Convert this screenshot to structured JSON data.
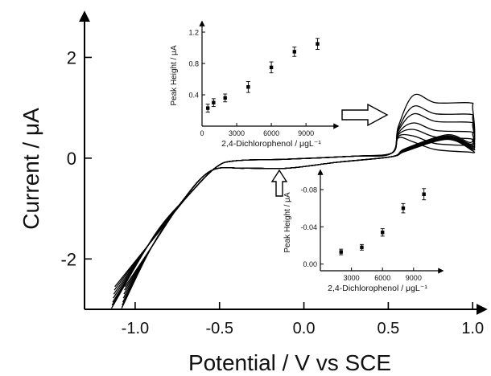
{
  "chart_data": [
    {
      "type": "line",
      "title": "",
      "xlabel": "Potential / V vs SCE",
      "ylabel": "Current / μA",
      "xlim": [
        -1.3,
        1.08
      ],
      "ylim": [
        -3.0,
        2.9
      ],
      "x_ticks": [
        -1.0,
        -0.5,
        0.0,
        0.5,
        1.0
      ],
      "x_tick_labels": [
        "-1.0",
        "-0.5",
        "0.0",
        "0.5",
        "1.0"
      ],
      "y_ticks": [
        -2,
        0,
        2
      ],
      "y_tick_labels": [
        "-2",
        "0",
        "2"
      ],
      "grid": false,
      "legend": "none",
      "colors": {
        "line": "#000000",
        "arrow_fill": "#ffffff"
      },
      "anodic_peak_potential": 0.65,
      "cathodic_peak_potential": -0.1,
      "series": [
        {
          "anodic_peak": 0.22,
          "lower_end": -2.55
        },
        {
          "anodic_peak": 0.34,
          "lower_end": -2.62
        },
        {
          "anodic_peak": 0.47,
          "lower_end": -2.7
        },
        {
          "anodic_peak": 0.6,
          "lower_end": -2.78
        },
        {
          "anodic_peak": 0.78,
          "lower_end": -2.86
        },
        {
          "anodic_peak": 0.93,
          "lower_end": -2.92
        },
        {
          "anodic_peak": 1.15,
          "lower_end": -2.98
        }
      ],
      "annotations": [
        "hollow arrow pointing to anodic peak",
        "hollow arrow pointing to cathodic shoulder"
      ]
    },
    {
      "type": "scatter",
      "title": "",
      "xlabel": "2,4-Dichlorophenol / μgL⁻¹",
      "ylabel": "Peak Height / μA",
      "xlim": [
        0,
        11500
      ],
      "ylim": [
        0,
        1.2
      ],
      "x_ticks": [
        0,
        3000,
        6000,
        9000
      ],
      "x_tick_labels": [
        "0",
        "3000",
        "6000",
        "9000"
      ],
      "y_ticks": [
        0.4,
        0.8,
        1.2
      ],
      "y_tick_labels": [
        "0.4",
        "0.8",
        "1.2"
      ],
      "x": [
        500,
        1000,
        2000,
        4000,
        6000,
        8000,
        10000
      ],
      "y": [
        0.23,
        0.3,
        0.36,
        0.5,
        0.75,
        0.95,
        1.05
      ],
      "error": [
        0.05,
        0.05,
        0.05,
        0.07,
        0.07,
        0.06,
        0.07
      ]
    },
    {
      "type": "scatter",
      "title": "",
      "xlabel": "2,4-Dichlorophenol / μgL⁻¹",
      "ylabel": "Peak Height / μA",
      "xlim": [
        0,
        11500
      ],
      "ylim": [
        -0.086,
        0.002
      ],
      "x_ticks": [
        3000,
        6000,
        9000
      ],
      "x_tick_labels": [
        "3000",
        "6000",
        "9000"
      ],
      "y_ticks": [
        0.0,
        -0.04,
        -0.08
      ],
      "y_tick_labels": [
        "0.00",
        "-0.04",
        "-0.08"
      ],
      "x": [
        2000,
        4000,
        6000,
        8000,
        10000
      ],
      "y": [
        -0.013,
        -0.018,
        -0.034,
        -0.06,
        -0.075
      ],
      "error": [
        0.003,
        0.003,
        0.004,
        0.005,
        0.006
      ]
    }
  ]
}
